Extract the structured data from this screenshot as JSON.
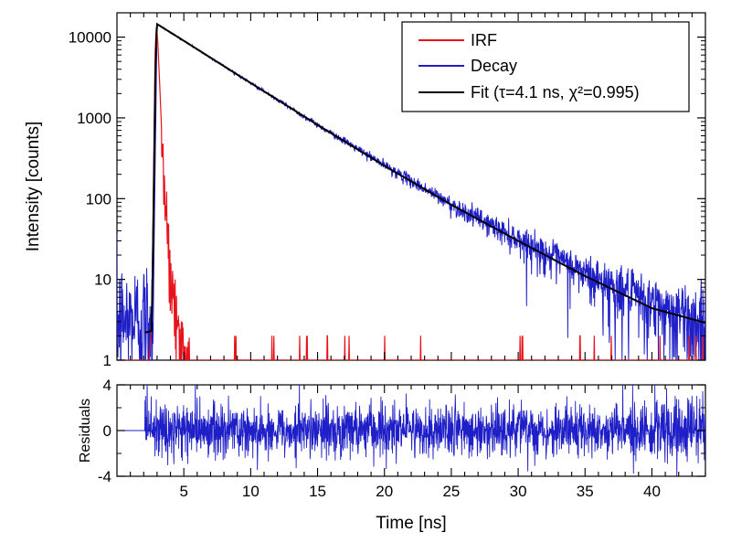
{
  "chart_data": [
    {
      "type": "line",
      "panel": "main",
      "title": "",
      "xlabel": "",
      "ylabel": "Intensity [counts]",
      "xlim": [
        0,
        44
      ],
      "ylim": [
        1,
        20000
      ],
      "yscale": "log",
      "grid": false,
      "legend_position": "top-right",
      "ytick_values": [
        1,
        10,
        100,
        1000,
        10000
      ],
      "ytick_labels": [
        "1",
        "10",
        "100",
        "1000",
        "10000"
      ],
      "series": [
        {
          "name": "IRF",
          "color": "#e8121a",
          "kind": "instrument-response",
          "x": [
            2.1,
            2.4,
            2.6,
            2.75,
            2.85,
            2.95,
            3.05,
            3.2,
            3.4,
            3.7,
            4.0,
            4.3,
            4.6,
            5.0,
            5.5
          ],
          "y": [
            1,
            1,
            3,
            300,
            6000,
            14000,
            9000,
            2500,
            400,
            60,
            12,
            4,
            2,
            1,
            1
          ]
        },
        {
          "name": "Decay",
          "color": "#1f1fc8",
          "kind": "measured-decay",
          "x": [
            0,
            2.0,
            2.7,
            3.0,
            5,
            10,
            15,
            20,
            25,
            30,
            35,
            40,
            44
          ],
          "y": [
            3,
            3,
            3,
            14500,
            9000,
            2700,
            820,
            260,
            85,
            32,
            12,
            5,
            3
          ]
        },
        {
          "name": "Fit (τ=4.1 ns, χ²=0.995)",
          "color": "#000000",
          "kind": "fit",
          "tau_ns": 4.1,
          "chi2": 0.995,
          "x": [
            2.1,
            2.6,
            2.75,
            2.9,
            3.0,
            5,
            10,
            15,
            20,
            25,
            30,
            35,
            40,
            44
          ],
          "y": [
            2.2,
            2.3,
            100,
            8000,
            14500,
            9000,
            2700,
            820,
            255,
            84,
            30,
            11,
            4.4,
            2.9
          ]
        }
      ]
    },
    {
      "type": "line",
      "panel": "residuals",
      "title": "",
      "xlabel": "Time [ns]",
      "ylabel": "Residuals",
      "xlim": [
        0,
        44
      ],
      "ylim": [
        -4,
        4
      ],
      "grid": false,
      "xtick_values": [
        5,
        10,
        15,
        20,
        25,
        30,
        35,
        40
      ],
      "xtick_labels": [
        "5",
        "10",
        "15",
        "20",
        "25",
        "30",
        "35",
        "40"
      ],
      "ytick_values": [
        4,
        0,
        -4
      ],
      "ytick_labels": [
        "4",
        "0",
        "-4"
      ],
      "series": [
        {
          "color": "#1f1fc8",
          "kind": "noise",
          "start_x": 2.1,
          "amplitude": 3.2
        }
      ]
    }
  ]
}
